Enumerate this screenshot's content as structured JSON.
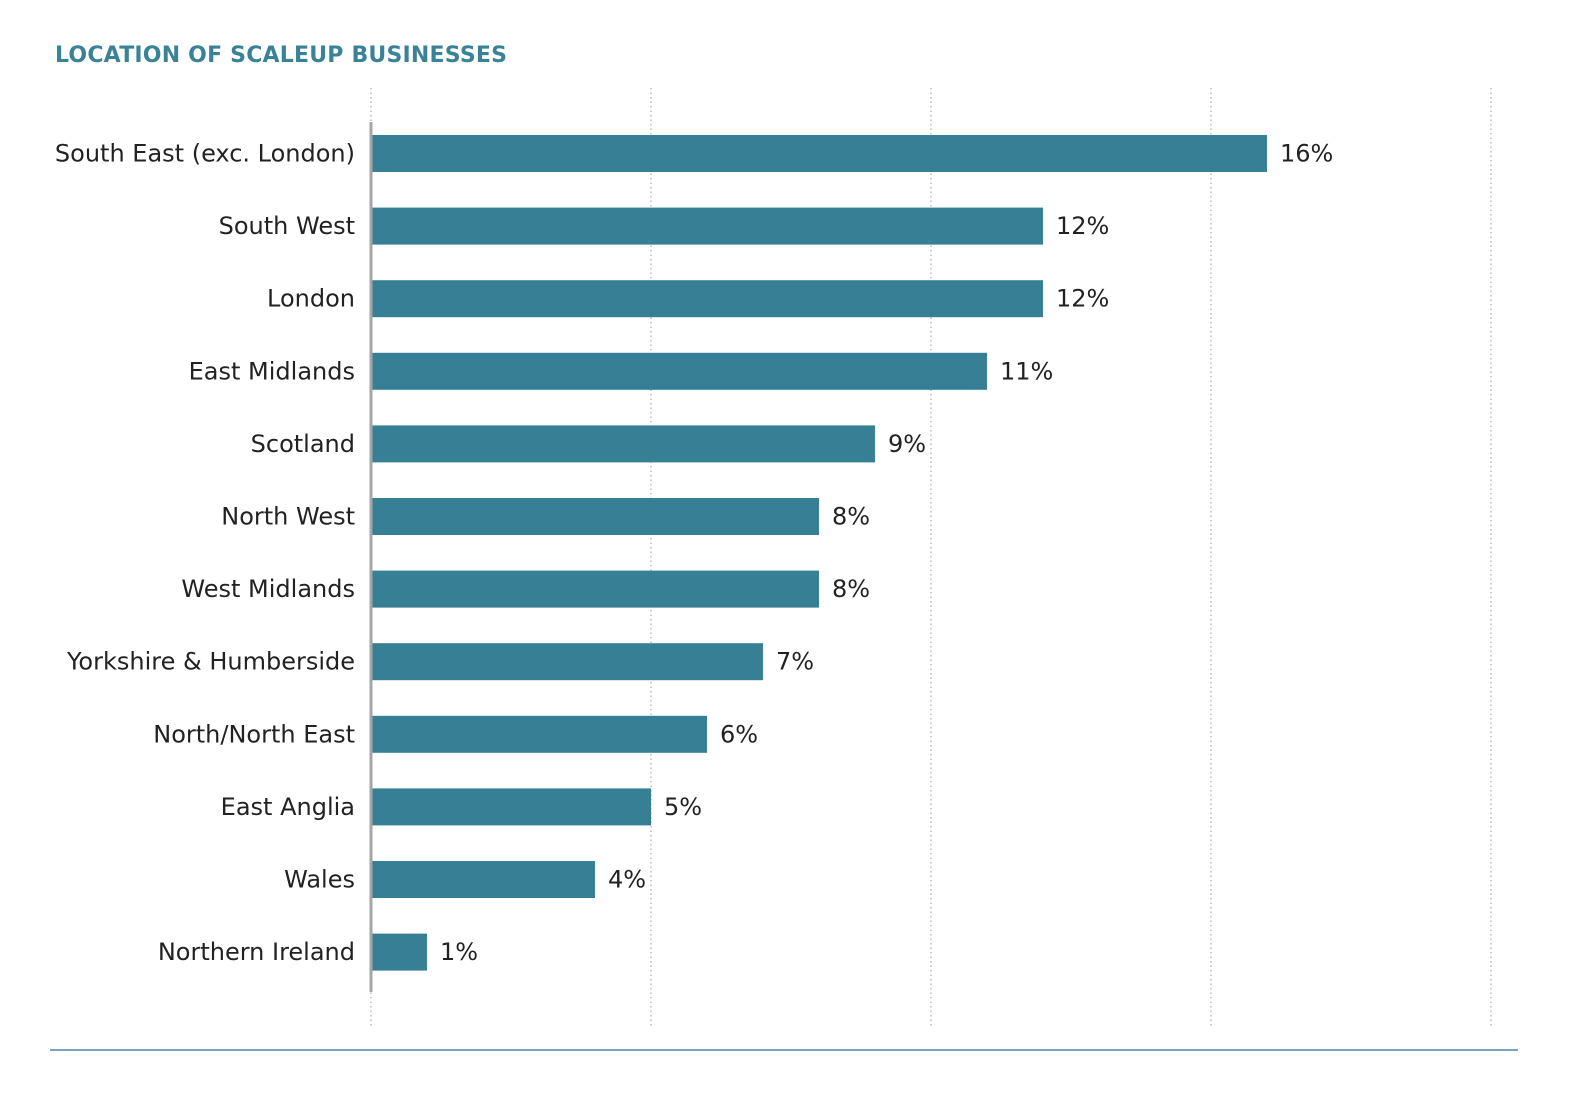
{
  "chart_data": {
    "type": "bar",
    "orientation": "horizontal",
    "title": "LOCATION OF SCALEUP BUSINESSES",
    "categories": [
      "South East (exc. London)",
      "South West",
      "London",
      "East Midlands",
      "Scotland",
      "North West",
      "West Midlands",
      "Yorkshire & Humberside",
      "North/North East",
      "East Anglia",
      "Wales",
      "Northern Ireland"
    ],
    "values": [
      16,
      12,
      12,
      11,
      9,
      8,
      8,
      7,
      6,
      5,
      4,
      1
    ],
    "value_labels": [
      "16%",
      "12%",
      "12%",
      "11%",
      "9%",
      "8%",
      "8%",
      "7%",
      "6%",
      "5%",
      "4%",
      "1%"
    ],
    "xlim": [
      0,
      20
    ],
    "grid": true,
    "grid_style": "dotted",
    "bar_color": "#367f94",
    "title_color": "#3a8396",
    "axis_color": "#a6a6a6",
    "rule_color": "#4f86a4"
  }
}
